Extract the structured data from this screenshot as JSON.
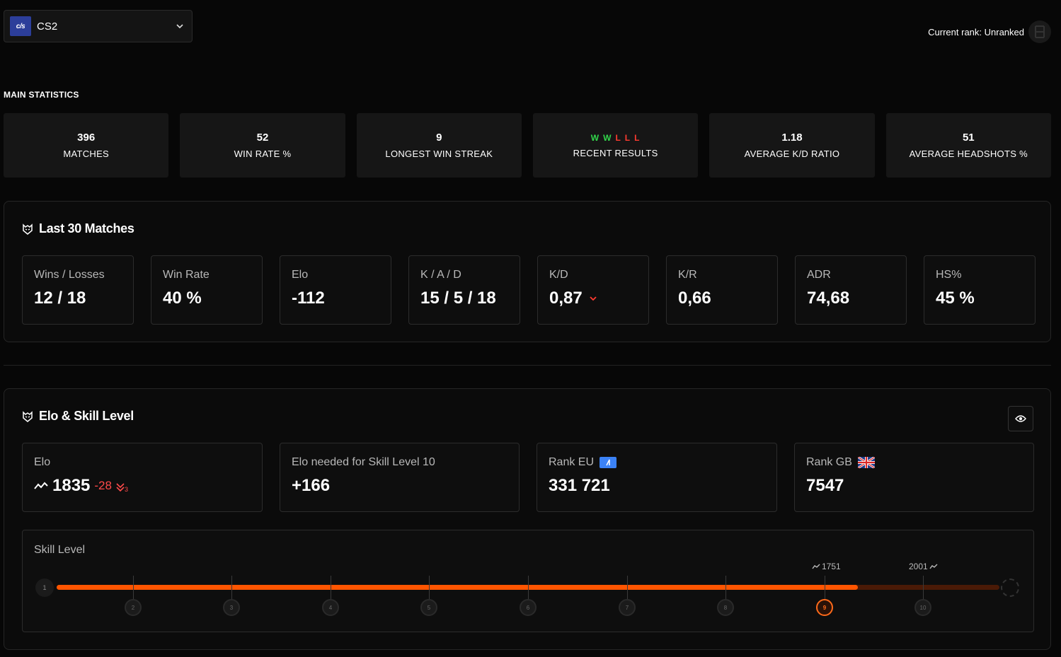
{
  "game_selector": {
    "logo_text": "c/s",
    "name": "CS2"
  },
  "current_rank": {
    "label": "Current rank: Unranked"
  },
  "main_statistics": {
    "title": "MAIN STATISTICS",
    "items": [
      {
        "value": "396",
        "label": "MATCHES"
      },
      {
        "value": "52",
        "label": "WIN RATE %"
      },
      {
        "value": "9",
        "label": "LONGEST WIN STREAK"
      },
      {
        "value": "",
        "label": "RECENT RESULTS"
      },
      {
        "value": "1.18",
        "label": "AVERAGE K/D RATIO"
      },
      {
        "value": "51",
        "label": "AVERAGE HEADSHOTS %"
      }
    ],
    "recent_results": [
      "W",
      "W",
      "L",
      "L",
      "L"
    ]
  },
  "last_matches": {
    "title": "Last 30 Matches",
    "cards": [
      {
        "label": "Wins / Losses",
        "value": "12 / 18"
      },
      {
        "label": "Win Rate",
        "value": "40 %"
      },
      {
        "label": "Elo",
        "value": "-112"
      },
      {
        "label": "K / A / D",
        "value": "15 / 5 / 18"
      },
      {
        "label": "K/D",
        "value": "0,87"
      },
      {
        "label": "K/R",
        "value": "0,66"
      },
      {
        "label": "ADR",
        "value": "74,68"
      },
      {
        "label": "HS%",
        "value": "45 %"
      }
    ]
  },
  "elo_skill": {
    "title": "Elo & Skill Level",
    "elo": {
      "label": "Elo",
      "value": "1835",
      "delta": "-28",
      "delta_count": "3"
    },
    "elo_needed": {
      "label": "Elo needed for Skill Level 10",
      "value": "+166"
    },
    "rank_eu": {
      "label": "Rank EU",
      "value": "331 721"
    },
    "rank_gb": {
      "label": "Rank GB",
      "value": "7547"
    },
    "skill": {
      "label": "Skill Level",
      "current_level": "9",
      "progress_fraction": 0.85,
      "levels": [
        "1",
        "2",
        "3",
        "4",
        "5",
        "6",
        "7",
        "8",
        "9",
        "10"
      ],
      "threshold_current": "1751",
      "threshold_next": "2001"
    }
  },
  "colors": {
    "accent": "#ff5500",
    "win": "#32d74b",
    "loss": "#ff3b30"
  }
}
